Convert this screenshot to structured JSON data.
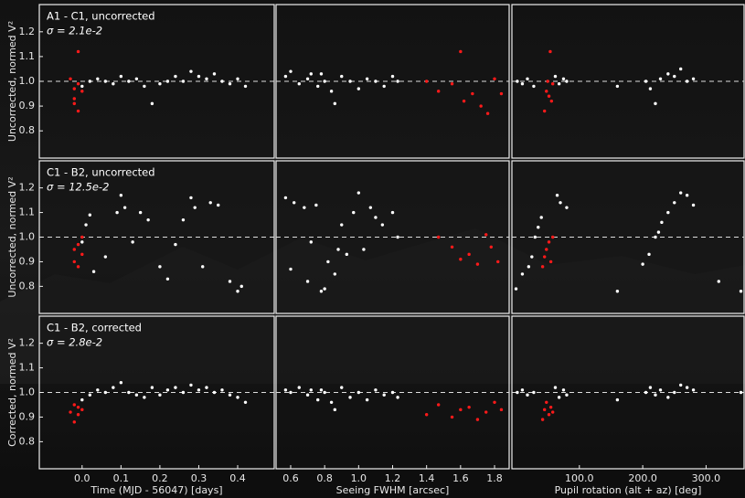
{
  "chart_data": [
    {
      "type": "scatter",
      "title": "A1 - C1, uncorrected",
      "subtitle": "σ = 2.1e-2",
      "y_label": "Uncorrected, normed V²",
      "xlim": [
        -0.11,
        0.494
      ],
      "ylim": [
        0.69,
        1.31
      ],
      "reference_line": 1,
      "yticks": [
        0.8,
        0.9,
        {
          "value": 1,
          "label": "1.0"
        },
        1.1,
        1.2
      ],
      "series": [
        {
          "color": "#ffffff",
          "x": [
            0.0,
            0.02,
            0.04,
            0.06,
            0.08,
            0.1,
            0.12,
            0.14,
            0.16,
            0.18,
            0.2,
            0.22,
            0.24,
            0.26,
            0.28,
            0.3,
            0.32,
            0.34,
            0.36,
            0.38,
            0.4,
            0.42
          ],
          "values": [
            0.98,
            1.0,
            1.01,
            1.0,
            0.99,
            1.02,
            1.0,
            1.01,
            0.98,
            0.91,
            0.99,
            1.0,
            1.02,
            1.0,
            1.04,
            1.02,
            1.01,
            1.03,
            1.0,
            0.99,
            1.01,
            0.98
          ]
        },
        {
          "color": "#ff1a1a",
          "x": [
            -0.03,
            -0.02,
            -0.02,
            -0.01,
            -0.01,
            0.0,
            -0.02,
            -0.01
          ],
          "values": [
            1.01,
            0.97,
            0.93,
            1.12,
            0.88,
            0.96,
            0.91,
            0.99
          ]
        }
      ]
    },
    {
      "type": "scatter",
      "xlim": [
        0.514,
        1.886
      ],
      "ylim": [
        0.69,
        1.31
      ],
      "reference_line": 1,
      "series": [
        {
          "color": "#ffffff",
          "x": [
            0.57,
            0.6,
            0.65,
            0.7,
            0.72,
            0.76,
            0.8,
            0.84,
            0.86,
            0.9,
            0.95,
            1.0,
            1.05,
            1.1,
            1.15,
            1.2,
            1.23,
            0.78
          ],
          "values": [
            1.02,
            1.04,
            0.99,
            1.01,
            1.03,
            0.98,
            1.0,
            0.96,
            0.91,
            1.02,
            1.0,
            0.97,
            1.01,
            1.0,
            0.98,
            1.02,
            1.0,
            1.03
          ]
        },
        {
          "color": "#ff1a1a",
          "x": [
            1.4,
            1.47,
            1.55,
            1.6,
            1.62,
            1.67,
            1.72,
            1.76,
            1.8,
            1.84
          ],
          "values": [
            1.0,
            0.96,
            0.99,
            1.12,
            0.92,
            0.95,
            0.9,
            0.87,
            1.01,
            0.95
          ]
        }
      ]
    },
    {
      "type": "scatter",
      "xlim": [
        -6.5,
        360
      ],
      "ylim": [
        0.69,
        1.31
      ],
      "reference_line": 1,
      "series": [
        {
          "color": "#ffffff",
          "x": [
            2,
            10,
            18,
            28,
            62,
            68,
            75,
            80,
            160,
            205,
            212,
            220,
            228,
            240,
            250,
            260,
            270,
            280
          ],
          "values": [
            1.0,
            0.99,
            1.01,
            0.98,
            1.02,
            0.99,
            1.01,
            1.0,
            0.98,
            1.0,
            0.97,
            0.91,
            1.01,
            1.03,
            1.02,
            1.05,
            1.0,
            1.01
          ]
        },
        {
          "color": "#ff1a1a",
          "x": [
            45,
            48,
            50,
            52,
            54,
            56,
            58
          ],
          "values": [
            0.88,
            0.96,
            1.0,
            0.94,
            1.12,
            0.92,
            0.99
          ]
        }
      ]
    },
    {
      "type": "scatter",
      "title": "C1 - B2, uncorrected",
      "subtitle": "σ = 12.5e-2",
      "y_label": "Uncorrected, normed V²",
      "xlim": [
        -0.11,
        0.494
      ],
      "ylim": [
        0.69,
        1.31
      ],
      "reference_line": 1,
      "yticks": [
        0.8,
        0.9,
        {
          "value": 1,
          "label": "1.0"
        },
        1.1,
        1.2
      ],
      "series": [
        {
          "color": "#ffffff",
          "x": [
            0.0,
            0.01,
            0.02,
            0.03,
            0.06,
            0.09,
            0.1,
            0.11,
            0.13,
            0.15,
            0.17,
            0.2,
            0.22,
            0.24,
            0.26,
            0.28,
            0.29,
            0.31,
            0.33,
            0.35,
            0.38,
            0.4,
            0.41
          ],
          "values": [
            0.98,
            1.05,
            1.09,
            0.86,
            0.92,
            1.1,
            1.17,
            1.12,
            0.98,
            1.1,
            1.07,
            0.88,
            0.83,
            0.97,
            1.07,
            1.16,
            1.12,
            0.88,
            1.14,
            1.13,
            0.82,
            0.78,
            0.8
          ]
        },
        {
          "color": "#ff1a1a",
          "x": [
            -0.02,
            -0.02,
            -0.01,
            -0.01,
            0.0,
            0.0
          ],
          "values": [
            0.9,
            0.95,
            0.97,
            0.88,
            1.0,
            0.93
          ]
        }
      ]
    },
    {
      "type": "scatter",
      "xlim": [
        0.514,
        1.886
      ],
      "ylim": [
        0.69,
        1.31
      ],
      "reference_line": 1,
      "series": [
        {
          "color": "#ffffff",
          "x": [
            0.57,
            0.62,
            0.68,
            0.72,
            0.75,
            0.8,
            0.82,
            0.86,
            0.9,
            0.93,
            0.97,
            1.0,
            1.03,
            1.07,
            1.1,
            1.14,
            1.2,
            1.23,
            0.6,
            0.7,
            0.78,
            0.88
          ],
          "values": [
            1.16,
            1.14,
            1.12,
            0.98,
            1.13,
            0.79,
            0.9,
            0.85,
            1.05,
            0.93,
            1.1,
            1.18,
            0.95,
            1.12,
            1.08,
            1.05,
            1.1,
            1.0,
            0.87,
            0.82,
            0.78,
            0.95
          ]
        },
        {
          "color": "#ff1a1a",
          "x": [
            1.47,
            1.55,
            1.6,
            1.65,
            1.7,
            1.75,
            1.78,
            1.82
          ],
          "values": [
            1.0,
            0.96,
            0.91,
            0.93,
            0.89,
            1.01,
            0.96,
            0.9
          ]
        }
      ]
    },
    {
      "type": "scatter",
      "xlim": [
        -6.5,
        360
      ],
      "ylim": [
        0.69,
        1.31
      ],
      "reference_line": 1,
      "series": [
        {
          "color": "#ffffff",
          "x": [
            0,
            10,
            20,
            25,
            30,
            35,
            40,
            65,
            70,
            80,
            160,
            200,
            210,
            220,
            225,
            230,
            240,
            250,
            260,
            270,
            280,
            320,
            355
          ],
          "values": [
            0.79,
            0.85,
            0.88,
            0.92,
            1.0,
            1.04,
            1.08,
            1.17,
            1.14,
            1.12,
            0.78,
            0.89,
            0.93,
            1.0,
            1.02,
            1.06,
            1.1,
            1.14,
            1.18,
            1.17,
            1.13,
            0.82,
            0.78
          ]
        },
        {
          "color": "#ff1a1a",
          "x": [
            42,
            45,
            48,
            52,
            55,
            58
          ],
          "values": [
            0.88,
            0.92,
            0.95,
            0.98,
            0.9,
            1.0
          ]
        }
      ]
    },
    {
      "type": "scatter",
      "title": "C1 - B2, corrected",
      "subtitle": "σ = 2.8e-2",
      "y_label": "Corrected, normed V²",
      "x_label": "Time (MJD - 56047) [days]",
      "xlim": [
        -0.11,
        0.494
      ],
      "ylim": [
        0.69,
        1.31
      ],
      "reference_line": 1,
      "yticks": [
        0.8,
        0.9,
        {
          "value": 1,
          "label": "1.0"
        },
        1.1,
        1.2
      ],
      "xticks": [
        {
          "value": 0,
          "label": "0.0"
        },
        0.1,
        0.2,
        0.3,
        0.4
      ],
      "series": [
        {
          "color": "#ffffff",
          "x": [
            0.0,
            0.02,
            0.04,
            0.06,
            0.08,
            0.1,
            0.12,
            0.14,
            0.16,
            0.18,
            0.2,
            0.22,
            0.24,
            0.26,
            0.28,
            0.3,
            0.32,
            0.34,
            0.36,
            0.38,
            0.4,
            0.42
          ],
          "values": [
            0.97,
            0.99,
            1.01,
            1.0,
            1.02,
            1.04,
            1.0,
            0.99,
            0.98,
            1.02,
            0.99,
            1.01,
            1.02,
            1.0,
            1.03,
            1.01,
            1.02,
            1.0,
            1.01,
            0.99,
            0.98,
            0.96
          ]
        },
        {
          "color": "#ff1a1a",
          "x": [
            -0.03,
            -0.02,
            -0.02,
            -0.01,
            -0.01,
            0.0
          ],
          "values": [
            0.92,
            0.88,
            0.95,
            0.91,
            0.94,
            0.93
          ]
        }
      ]
    },
    {
      "type": "scatter",
      "x_label": "Seeing FWHM [arcsec]",
      "xlim": [
        0.514,
        1.886
      ],
      "ylim": [
        0.69,
        1.31
      ],
      "reference_line": 1,
      "xticks": [
        0.6,
        0.8,
        {
          "value": 1,
          "label": "1.0"
        },
        1.2,
        1.4,
        1.6,
        1.8
      ],
      "series": [
        {
          "color": "#ffffff",
          "x": [
            0.57,
            0.6,
            0.65,
            0.7,
            0.72,
            0.76,
            0.8,
            0.84,
            0.86,
            0.9,
            0.95,
            1.0,
            1.05,
            1.1,
            1.15,
            1.2,
            1.23,
            0.78
          ],
          "values": [
            1.01,
            1.0,
            1.02,
            0.99,
            1.01,
            0.97,
            1.0,
            0.96,
            0.93,
            1.02,
            0.98,
            1.0,
            0.97,
            1.01,
            0.99,
            1.0,
            0.98,
            1.01
          ]
        },
        {
          "color": "#ff1a1a",
          "x": [
            1.4,
            1.47,
            1.55,
            1.6,
            1.65,
            1.7,
            1.75,
            1.8,
            1.84
          ],
          "values": [
            0.91,
            0.95,
            0.9,
            0.93,
            0.94,
            0.89,
            0.92,
            0.96,
            0.93
          ]
        }
      ]
    },
    {
      "type": "scatter",
      "x_label": "Pupil rotation (alt + az) [deg]",
      "xlim": [
        -6.5,
        360
      ],
      "ylim": [
        0.69,
        1.31
      ],
      "reference_line": 1,
      "xticks": [
        {
          "value": 100,
          "label": "100.0"
        },
        {
          "value": 200,
          "label": "200.0"
        },
        {
          "value": 300,
          "label": "300.0"
        }
      ],
      "series": [
        {
          "color": "#ffffff",
          "x": [
            2,
            10,
            18,
            28,
            62,
            68,
            75,
            80,
            160,
            205,
            212,
            220,
            228,
            240,
            250,
            260,
            270,
            280,
            355
          ],
          "values": [
            1.0,
            1.01,
            0.99,
            1.0,
            1.02,
            0.98,
            1.01,
            0.99,
            0.97,
            1.0,
            1.02,
            0.99,
            1.01,
            0.98,
            1.0,
            1.03,
            1.02,
            1.01,
            1.0
          ]
        },
        {
          "color": "#ff1a1a",
          "x": [
            42,
            45,
            48,
            52,
            55,
            58
          ],
          "values": [
            0.89,
            0.93,
            0.96,
            0.91,
            0.94,
            0.92
          ]
        }
      ]
    }
  ]
}
